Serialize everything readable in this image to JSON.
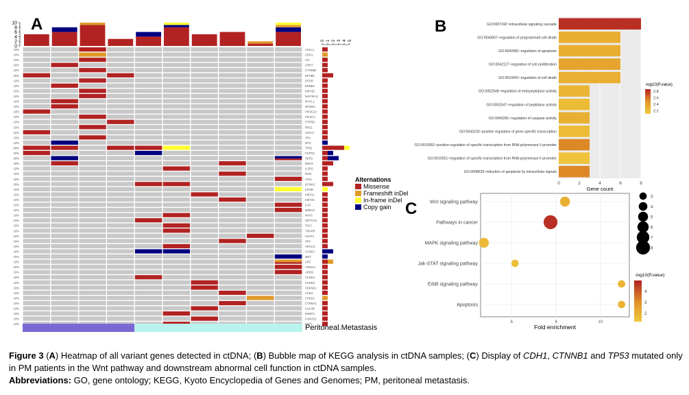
{
  "panels": {
    "A": {
      "letter": "A",
      "chart_data": {
        "type": "heatmap",
        "title": "Heatmap of all variant genes detected in ctDNA",
        "samples": 10,
        "top_bar": {
          "ylim": [
            0,
            10
          ],
          "yticks": [
            "0",
            "2",
            "4",
            "6",
            "8",
            "10"
          ],
          "stacks": [
            {
              "Missense": 5
            },
            {
              "Missense": 6,
              "Copy gain": 2
            },
            {
              "Missense": 9,
              "Frameshift inDel": 1
            },
            {
              "Missense": 3
            },
            {
              "Missense": 4,
              "Copy gain": 2
            },
            {
              "Missense": 8,
              "Copy gain": 1,
              "In-frame inDel": 1
            },
            {
              "Missense": 5
            },
            {
              "Missense": 6
            },
            {
              "Missense": 1,
              "Frameshift inDel": 1
            },
            {
              "Missense": 6,
              "Copy gain": 2,
              "Frameshift inDel": 1,
              "In-frame inDel": 1
            }
          ]
        },
        "right_bar_ticks": [
          "0",
          "1",
          "2",
          "3",
          "4",
          "5"
        ],
        "genes": [
          "ASXL1",
          "CDH1",
          "CIC",
          "CRDT",
          "CTNNB1",
          "EPHB6",
          "EPOR",
          "ERBB4",
          "KMT2D",
          "MAP3K13",
          "MYCL1",
          "NFKBIA",
          "PIK3C2A",
          "PIK3CA",
          "PTPRD",
          "RPL5",
          "SOX17",
          "XPA",
          "MYC",
          "TP53",
          "FGFR2",
          "HER2",
          "MSH3",
          "IL2RG",
          "IRS2",
          "JAK1",
          "KCNH2",
          "KIF5B",
          "KMT2A",
          "KMT2C",
          "LCK",
          "MED12",
          "NAV3",
          "NOTCH1",
          "TAF1",
          "TIPARP",
          "U2AF2",
          "XPC",
          "XRCC3",
          "CCNE1",
          "MET",
          "APC",
          "ARID1A",
          "ARID2",
          "CCND1",
          "CCND2",
          "CDKN2A",
          "CHD4",
          "CHEK2",
          "CTNNA1",
          "CUL4B",
          "DNMT1",
          "FANCD2",
          "FAT3"
        ],
        "percent_labels": [
          "10%",
          "10%",
          "10%",
          "10%",
          "10%",
          "20%",
          "10%",
          "10%",
          "10%",
          "10%",
          "10%",
          "10%",
          "10%",
          "10%",
          "10%",
          "10%",
          "10%",
          "10%",
          "10%",
          "50%",
          "20%",
          "20%",
          "20%",
          "10%",
          "10%",
          "10%",
          "20%",
          "10%",
          "10%",
          "10%",
          "10%",
          "10%",
          "10%",
          "10%",
          "10%",
          "10%",
          "10%",
          "10%",
          "10%",
          "20%",
          "10%",
          "10%",
          "10%",
          "10%",
          "10%",
          "10%",
          "10%",
          "10%",
          "10%",
          "10%",
          "10%",
          "10%",
          "10%",
          "10%"
        ],
        "cells": {
          "ASXL1": [
            [
              2,
              "M"
            ]
          ],
          "CDH1": [
            [
              2,
              "F"
            ]
          ],
          "CIC": [
            [
              2,
              "M"
            ]
          ],
          "CRDT": [
            [
              1,
              "M"
            ]
          ],
          "CTNNB1": [
            [
              2,
              "M"
            ]
          ],
          "EPHB6": [
            [
              0,
              "M"
            ],
            [
              3,
              "M"
            ]
          ],
          "EPOR": [
            [
              2,
              "M"
            ]
          ],
          "ERBB4": [
            [
              1,
              "M"
            ]
          ],
          "KMT2D": [
            [
              2,
              "M"
            ]
          ],
          "MAP3K13": [
            [
              2,
              "M"
            ]
          ],
          "MYCL1": [
            [
              1,
              "M"
            ]
          ],
          "NFKBIA": [
            [
              1,
              "M"
            ]
          ],
          "PIK3C2A": [
            [
              0,
              "M"
            ]
          ],
          "PIK3CA": [
            [
              2,
              "M"
            ]
          ],
          "PTPRD": [
            [
              3,
              "M"
            ]
          ],
          "RPL5": [
            [
              2,
              "M"
            ]
          ],
          "SOX17": [
            [
              0,
              "M"
            ]
          ],
          "XPA": [
            [
              2,
              "M"
            ]
          ],
          "MYC": [
            [
              1,
              "C"
            ]
          ],
          "TP53": [
            [
              0,
              "M"
            ],
            [
              1,
              "M"
            ],
            [
              3,
              "M"
            ],
            [
              4,
              "M"
            ],
            [
              5,
              "I"
            ]
          ],
          "FGFR2": [
            [
              0,
              "M"
            ],
            [
              4,
              "C"
            ]
          ],
          "HER2": [
            [
              1,
              "C"
            ],
            [
              9,
              "CM"
            ]
          ],
          "MSH3": [
            [
              1,
              "M"
            ],
            [
              7,
              "M"
            ]
          ],
          "IL2RG": [
            [
              5,
              "M"
            ]
          ],
          "IRS2": [
            [
              7,
              "M"
            ]
          ],
          "JAK1": [
            [
              9,
              "M"
            ]
          ],
          "KCNH2": [
            [
              4,
              "M"
            ],
            [
              5,
              "M"
            ]
          ],
          "KIF5B": [
            [
              9,
              "I"
            ]
          ],
          "KMT2A": [
            [
              6,
              "M"
            ]
          ],
          "KMT2C": [
            [
              7,
              "M"
            ]
          ],
          "LCK": [
            [
              9,
              "M"
            ]
          ],
          "MED12": [
            [
              9,
              "M"
            ]
          ],
          "NAV3": [
            [
              5,
              "M"
            ]
          ],
          "NOTCH1": [
            [
              4,
              "M"
            ]
          ],
          "TAF1": [
            [
              5,
              "M"
            ]
          ],
          "TIPARP": [
            [
              5,
              "M"
            ]
          ],
          "U2AF2": [
            [
              8,
              "M"
            ]
          ],
          "XPC": [
            [
              7,
              "M"
            ]
          ],
          "XRCC3": [
            [
              5,
              "M"
            ]
          ],
          "CCNE1": [
            [
              4,
              "C"
            ],
            [
              5,
              "C"
            ]
          ],
          "MET": [
            [
              9,
              "C"
            ]
          ],
          "APC": [
            [
              9,
              "FM"
            ]
          ],
          "ARID1A": [
            [
              9,
              "M"
            ]
          ],
          "ARID2": [
            [
              9,
              "M"
            ]
          ],
          "CCND1": [
            [
              4,
              "M"
            ]
          ],
          "CCND2": [
            [
              6,
              "M"
            ]
          ],
          "CDKN2A": [
            [
              6,
              "M"
            ]
          ],
          "CHD4": [
            [
              7,
              "M"
            ]
          ],
          "CHEK2": [
            [
              8,
              "F"
            ]
          ],
          "CTNNA1": [
            [
              7,
              "M"
            ]
          ],
          "CUL4B": [
            [
              6,
              "M"
            ]
          ],
          "DNMT1": [
            [
              5,
              "M"
            ]
          ],
          "FANCD2": [
            [
              6,
              "M"
            ]
          ],
          "FAT3": [
            [
              5,
              "M"
            ]
          ]
        },
        "gene_counts": {
          "CDH1": {
            "F": 1
          },
          "EPHB6": {
            "M": 2
          },
          "MYC": {
            "C": 1
          },
          "TP53": {
            "M": 4,
            "I": 1
          },
          "FGFR2": {
            "M": 1,
            "C": 1
          },
          "HER2": {
            "M": 1,
            "C": 2
          },
          "MSH3": {
            "M": 2
          },
          "KCNH2": {
            "M": 2
          },
          "KIF5B": {
            "I": 1
          },
          "CCNE1": {
            "C": 2
          },
          "MET": {
            "C": 1
          },
          "APC": {
            "M": 1,
            "F": 1
          },
          "CHEK2": {
            "F": 1
          }
        },
        "legend": {
          "title": "Alternations",
          "items": [
            {
              "key": "M",
              "label": "Missense",
              "color": "#b22222"
            },
            {
              "key": "F",
              "label": "Frameshift inDel",
              "color": "#e09a2a"
            },
            {
              "key": "I",
              "label": "In-frame inDel",
              "color": "#ffff33"
            },
            {
              "key": "C",
              "label": "Copy gain",
              "color": "#000080"
            }
          ]
        },
        "group_bar": {
          "label": "Peritoneal.Metastasis",
          "groups": [
            {
              "samples": 4,
              "color": "#7b68d6"
            },
            {
              "samples": 6,
              "color": "#b9f3ee"
            }
          ]
        }
      }
    },
    "B": {
      "letter": "B",
      "chart_data": {
        "type": "bar",
        "orientation": "horizontal",
        "xlabel": "Gene count",
        "xlim": [
          0,
          8
        ],
        "xticks": [
          "0",
          "2",
          "4",
          "6",
          "8"
        ],
        "categories": [
          "GO:0007242~intracellular signaling cascade",
          "GO:0043067~regulation of programmed cell death",
          "GO:0042981~regulation of apoptosis",
          "GO:0042127~regulation of cell proliferation",
          "GO:0010941~regulation of cell death",
          "GO:0052548~regulation of endopeptidase activity",
          "GO:0052547~regulation of peptidase activity",
          "GO:0043281~regulation of caspase activity",
          "GO:0043193~positive regulation of gene-specific transcription",
          "GO:0010552~positive regulation of specific transcription from RNA polymerase II promoter",
          "GO:0010551~regulation of specific transcription from RNA polymerase II promoter",
          "GO:0008629~induction of apoptosis by intracellular signals"
        ],
        "values": [
          8,
          6,
          6,
          6,
          6,
          3,
          3,
          3,
          3,
          3,
          3,
          3
        ],
        "color_values": [
          2.85,
          2.3,
          2.3,
          2.4,
          2.3,
          2.25,
          2.2,
          2.3,
          2.2,
          2.55,
          2.15,
          2.55
        ],
        "legend": {
          "title": "-log10(P.value)",
          "ticks": [
            "2.8",
            "2.6",
            "2.4",
            "2.2"
          ],
          "range": [
            2.1,
            2.9
          ]
        }
      }
    },
    "C": {
      "letter": "C",
      "chart_data": {
        "type": "scatter",
        "xlabel": "Fold enrichment",
        "xlim": [
          4.6,
          11.3
        ],
        "xticks": [
          "6",
          "8",
          "10"
        ],
        "categories": [
          "Wnt signaling pathway",
          "Pathways in cancer",
          "MAPK signaling pathway",
          "Jak-STAT signaling pathway",
          "ErbB signaling pathway",
          "Apoptosis"
        ],
        "x": [
          8.4,
          7.75,
          4.75,
          6.15,
          10.95,
          10.95
        ],
        "size": [
          5,
          8,
          5,
          3,
          3,
          3
        ],
        "color_values": [
          2.3,
          4.6,
          2.0,
          1.8,
          2.2,
          2.2
        ],
        "size_legend": {
          "values": [
            "3",
            "4",
            "5",
            "6",
            "7",
            "8"
          ]
        },
        "color_legend": {
          "title": "-log10(P.value)",
          "ticks": [
            "4",
            "3",
            "2"
          ],
          "range": [
            1.5,
            4.8
          ]
        }
      }
    }
  },
  "caption": {
    "figure_label": "Figure 3",
    "line1_parts": [
      {
        "t": "Figure 3",
        "s": "b"
      },
      {
        "t": " (",
        "s": ""
      },
      {
        "t": "A",
        "s": "b"
      },
      {
        "t": ") Heatmap of all variant genes detected in ctDNA; (",
        "s": ""
      },
      {
        "t": "B",
        "s": "b"
      },
      {
        "t": ") Bubble map of KEGG analysis in ctDNA samples; (",
        "s": ""
      },
      {
        "t": "C",
        "s": "b"
      },
      {
        "t": ") Display of ",
        "s": ""
      },
      {
        "t": "CDH1",
        "s": "i"
      },
      {
        "t": ", ",
        "s": ""
      },
      {
        "t": "CTNNB1",
        "s": "i"
      },
      {
        "t": " and ",
        "s": ""
      },
      {
        "t": "TP53",
        "s": "i"
      },
      {
        "t": " mutated only in PM patients in the Wnt pathway and downstream abnormal cell function in ctDNA samples.",
        "s": ""
      }
    ],
    "abbrev_label": "Abbreviations:",
    "abbrev_text": " GO, gene ontology; KEGG, Kyoto Encyclopedia of Genes and Genomes; PM, peritoneal metastasis."
  }
}
